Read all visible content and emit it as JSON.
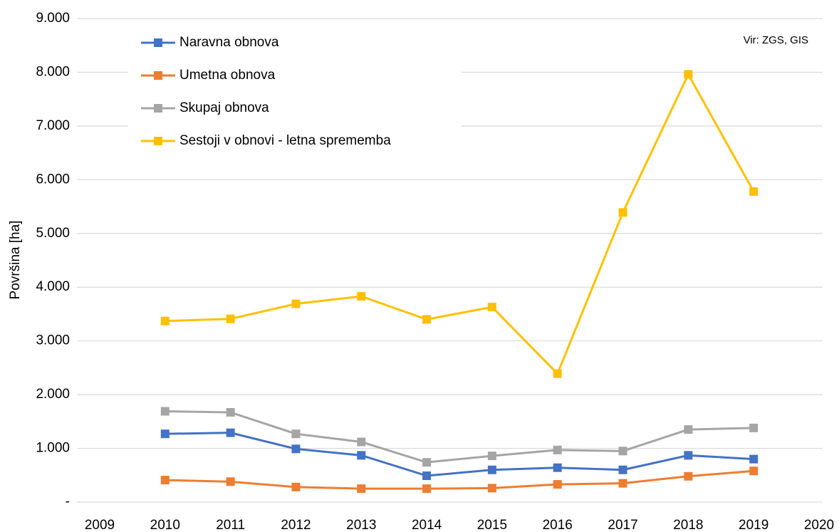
{
  "chart_data": {
    "type": "line",
    "y_label": "Površina [ha]",
    "annotation": "Vir: ZGS, GIS",
    "x": [
      2010,
      2011,
      2012,
      2013,
      2014,
      2015,
      2016,
      2017,
      2018,
      2019
    ],
    "xlim": [
      2009,
      2020
    ],
    "xticks": [
      2009,
      2010,
      2011,
      2012,
      2013,
      2014,
      2015,
      2016,
      2017,
      2018,
      2019,
      2020
    ],
    "ylim": [
      0,
      9000
    ],
    "yticks": [
      {
        "value": 0,
        "label": "-"
      },
      {
        "value": 1000,
        "label": "1.000"
      },
      {
        "value": 2000,
        "label": "2.000"
      },
      {
        "value": 3000,
        "label": "3.000"
      },
      {
        "value": 4000,
        "label": "4.000"
      },
      {
        "value": 5000,
        "label": "5.000"
      },
      {
        "value": 6000,
        "label": "6.000"
      },
      {
        "value": 7000,
        "label": "7.000"
      },
      {
        "value": 8000,
        "label": "8.000"
      },
      {
        "value": 9000,
        "label": "9.000"
      }
    ],
    "grid": true,
    "legend": "upper left",
    "series": [
      {
        "name": "Naravna obnova",
        "color": "#4472c4",
        "values": [
          1270,
          1290,
          990,
          870,
          490,
          600,
          640,
          600,
          870,
          800
        ]
      },
      {
        "name": "Umetna obnova",
        "color": "#ed7d31",
        "values": [
          410,
          380,
          280,
          250,
          250,
          260,
          330,
          350,
          480,
          580
        ]
      },
      {
        "name": "Skupaj obnova",
        "color": "#a5a5a5",
        "values": [
          1690,
          1670,
          1270,
          1120,
          740,
          860,
          970,
          950,
          1350,
          1380
        ]
      },
      {
        "name": "Sestoji v obnovi - letna sprememba",
        "color": "#ffc000",
        "values": [
          3370,
          3410,
          3690,
          3830,
          3400,
          3630,
          2390,
          5390,
          7960,
          5780
        ]
      }
    ]
  }
}
